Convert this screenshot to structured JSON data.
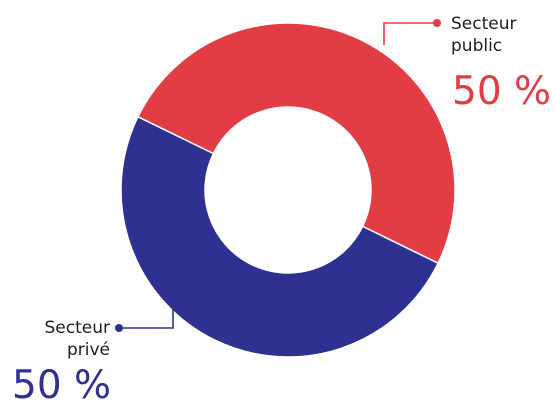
{
  "chart_data": {
    "type": "pie",
    "donut": true,
    "slices": [
      {
        "label_line1": "Secteur",
        "label_line2": "public",
        "value": 50,
        "value_text": "50 %",
        "color": "#e23d45"
      },
      {
        "label_line1": "Secteur",
        "label_line2": "privé",
        "value": 50,
        "value_text": "50 %",
        "color": "#2e3190"
      }
    ]
  }
}
